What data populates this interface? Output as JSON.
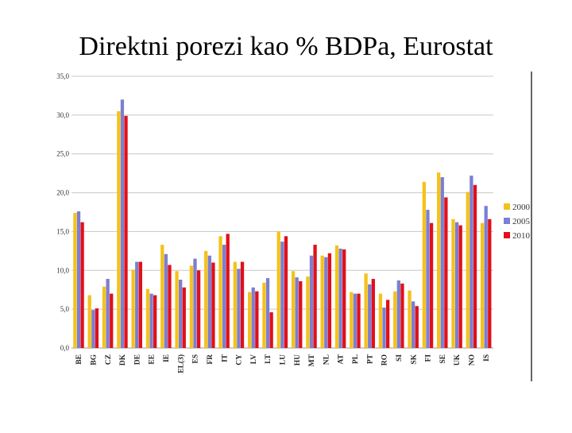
{
  "slide": {
    "title": "Direktni porezi kao % BDPa, Eurostat"
  },
  "chart_data": {
    "type": "bar",
    "title": "Direktni porezi kao % BDPa, Eurostat",
    "xlabel": "",
    "ylabel": "",
    "ylim": [
      0,
      35
    ],
    "yticks": [
      "0,0",
      "5,0",
      "10,0",
      "15,0",
      "20,0",
      "25,0",
      "30,0",
      "35,0"
    ],
    "grid": true,
    "legend_position": "right",
    "categories": [
      "BE",
      "BG",
      "CZ",
      "DK",
      "DE",
      "EE",
      "IE",
      "EL(3)",
      "ES",
      "FR",
      "IT",
      "CY",
      "LV",
      "LT",
      "LU",
      "HU",
      "MT",
      "NL",
      "AT",
      "PL",
      "PT",
      "RO",
      "SI",
      "SK",
      "FI",
      "SE",
      "UK",
      "NO",
      "IS"
    ],
    "series": [
      {
        "name": "2000",
        "color": "#F5C21A",
        "values": [
          17.4,
          6.8,
          7.9,
          30.5,
          10.1,
          7.6,
          13.3,
          9.9,
          10.6,
          12.5,
          14.4,
          11.1,
          7.2,
          8.4,
          15.0,
          9.9,
          9.2,
          11.9,
          13.2,
          7.2,
          9.6,
          7.0,
          7.3,
          7.4,
          21.4,
          22.6,
          16.6,
          20.1,
          16.1
        ]
      },
      {
        "name": "2005",
        "color": "#7B7FD1",
        "values": [
          17.6,
          4.9,
          8.9,
          32.0,
          11.1,
          7.0,
          12.1,
          8.8,
          11.5,
          11.9,
          13.3,
          10.2,
          7.8,
          9.0,
          13.7,
          9.1,
          11.9,
          11.7,
          12.8,
          7.0,
          8.2,
          5.2,
          8.7,
          6.0,
          17.8,
          22.0,
          16.2,
          22.2,
          18.3
        ]
      },
      {
        "name": "2010",
        "color": "#E0101A",
        "values": [
          16.2,
          5.1,
          7.0,
          29.9,
          11.1,
          6.8,
          10.7,
          7.8,
          10.0,
          11.0,
          14.7,
          11.1,
          7.3,
          4.6,
          14.4,
          8.6,
          13.3,
          12.2,
          12.7,
          7.0,
          8.9,
          6.2,
          8.3,
          5.4,
          16.1,
          19.4,
          15.8,
          21.0,
          16.6
        ]
      }
    ]
  }
}
